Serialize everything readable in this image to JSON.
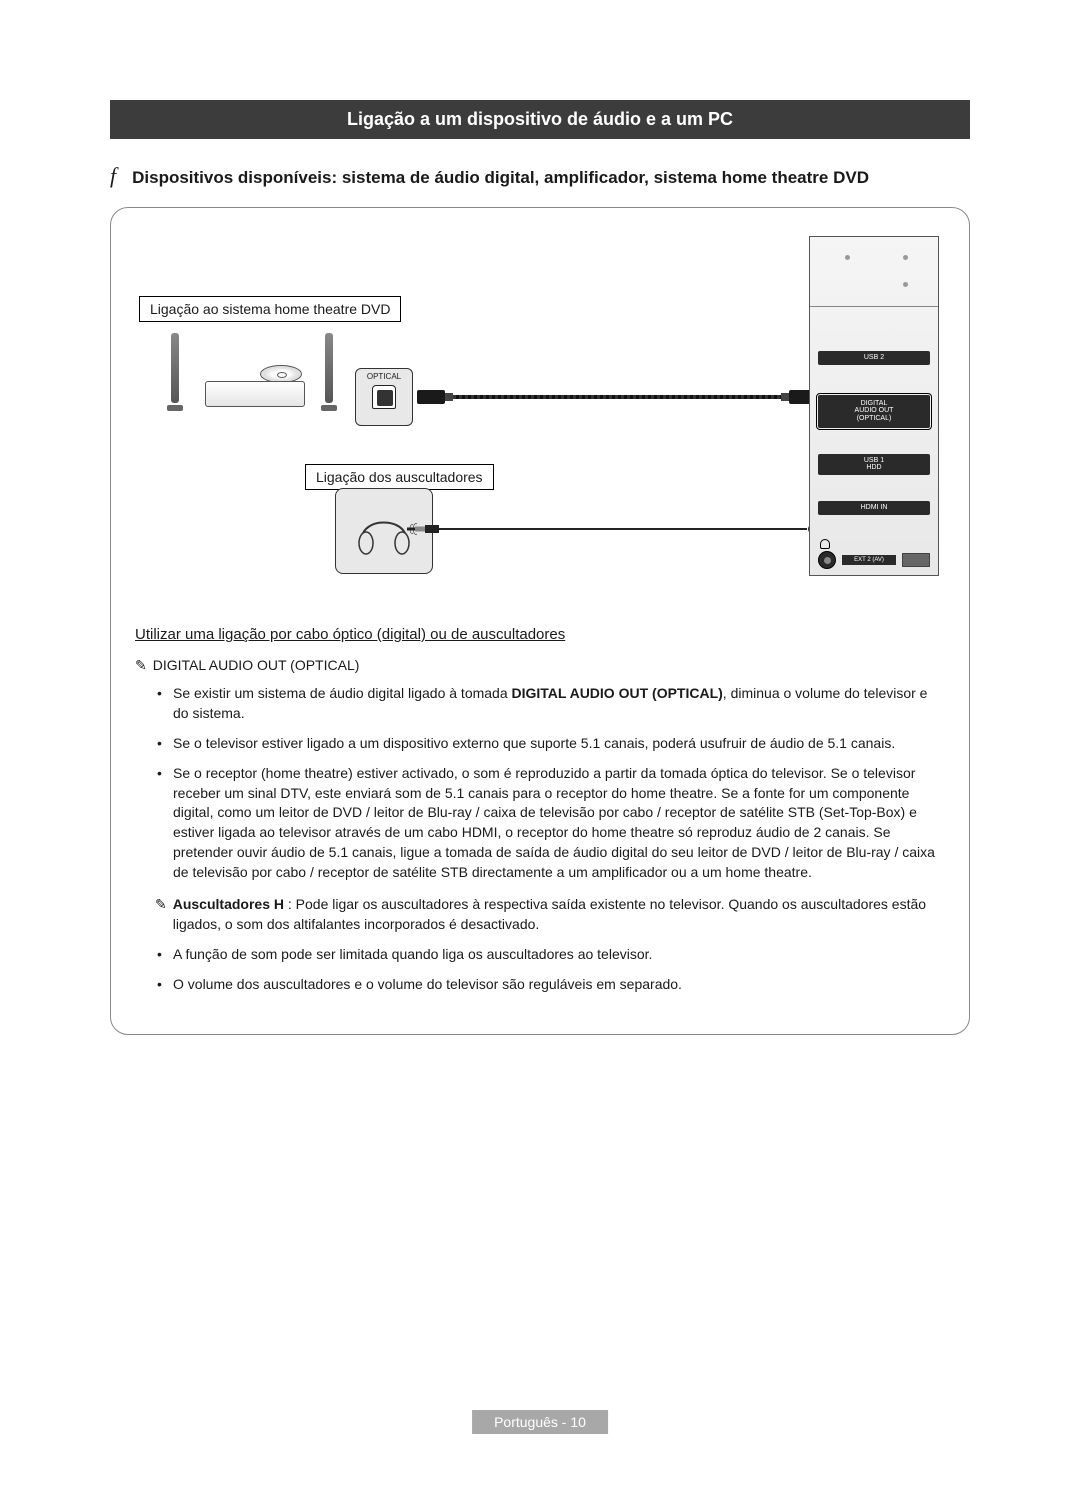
{
  "title": "Ligação a um dispositivo de áudio e a um PC",
  "subtitle_icon": "f",
  "subtitle": "Dispositivos disponíveis: sistema de áudio digital, amplificador, sistema home theatre DVD",
  "diagram": {
    "label_home_theatre": "Ligação ao sistema home theatre DVD",
    "label_headphones": "Ligação dos auscultadores",
    "optical_label": "OPTICAL",
    "ports": {
      "usb2": "USB 2",
      "digital_audio": "DIGITAL\nAUDIO OUT\n(OPTICAL)",
      "usb1": "USB 1\nHDD",
      "hdmi": "HDMI IN",
      "ext2": "EXT 2 (AV)"
    }
  },
  "section_heading": "Utilizar uma ligação por cabo óptico (digital) ou de auscultadores",
  "note_icon": "✎",
  "optical_heading": "DIGITAL AUDIO OUT (OPTICAL)",
  "optical_bullets": [
    "Se existir um sistema de áudio digital ligado à tomada DIGITAL AUDIO OUT (OPTICAL), diminua o volume do televisor e do sistema.",
    "Se o televisor estiver ligado a um dispositivo externo que suporte 5.1 canais, poderá usufruir de áudio de 5.1 canais.",
    "Se o receptor (home theatre) estiver activado, o som é reproduzido a partir da tomada óptica do televisor. Se o televisor receber um sinal DTV, este enviará som de 5.1 canais para o receptor do home theatre. Se a fonte for um componente digital, como um leitor de DVD / leitor de Blu-ray / caixa de televisão por cabo / receptor de satélite STB (Set-Top-Box) e estiver ligada ao televisor através de um cabo HDMI, o receptor do home theatre só reproduz áudio de 2 canais. Se pretender ouvir áudio de 5.1 canais, ligue a tomada de saída de áudio digital do seu leitor de DVD / leitor de Blu-ray / caixa de televisão por cabo / receptor de satélite STB directamente a um amplificador ou a um home theatre."
  ],
  "headphones_para_prefix": "Auscultadores H",
  "headphones_para": " : Pode ligar os auscultadores à respectiva saída existente no televisor. Quando os auscultadores estão ligados, o som dos altifalantes incorporados é desactivado.",
  "headphones_bullets": [
    "A função de som pode ser limitada quando liga os auscultadores ao televisor.",
    "O volume dos auscultadores e o volume do televisor são reguláveis em separado."
  ],
  "footer": "Português - 10",
  "colors": {
    "titlebar_bg": "#3c3c3c",
    "border": "#888888",
    "text": "#1a1a1a",
    "footer_bg": "#a8a8a8"
  }
}
